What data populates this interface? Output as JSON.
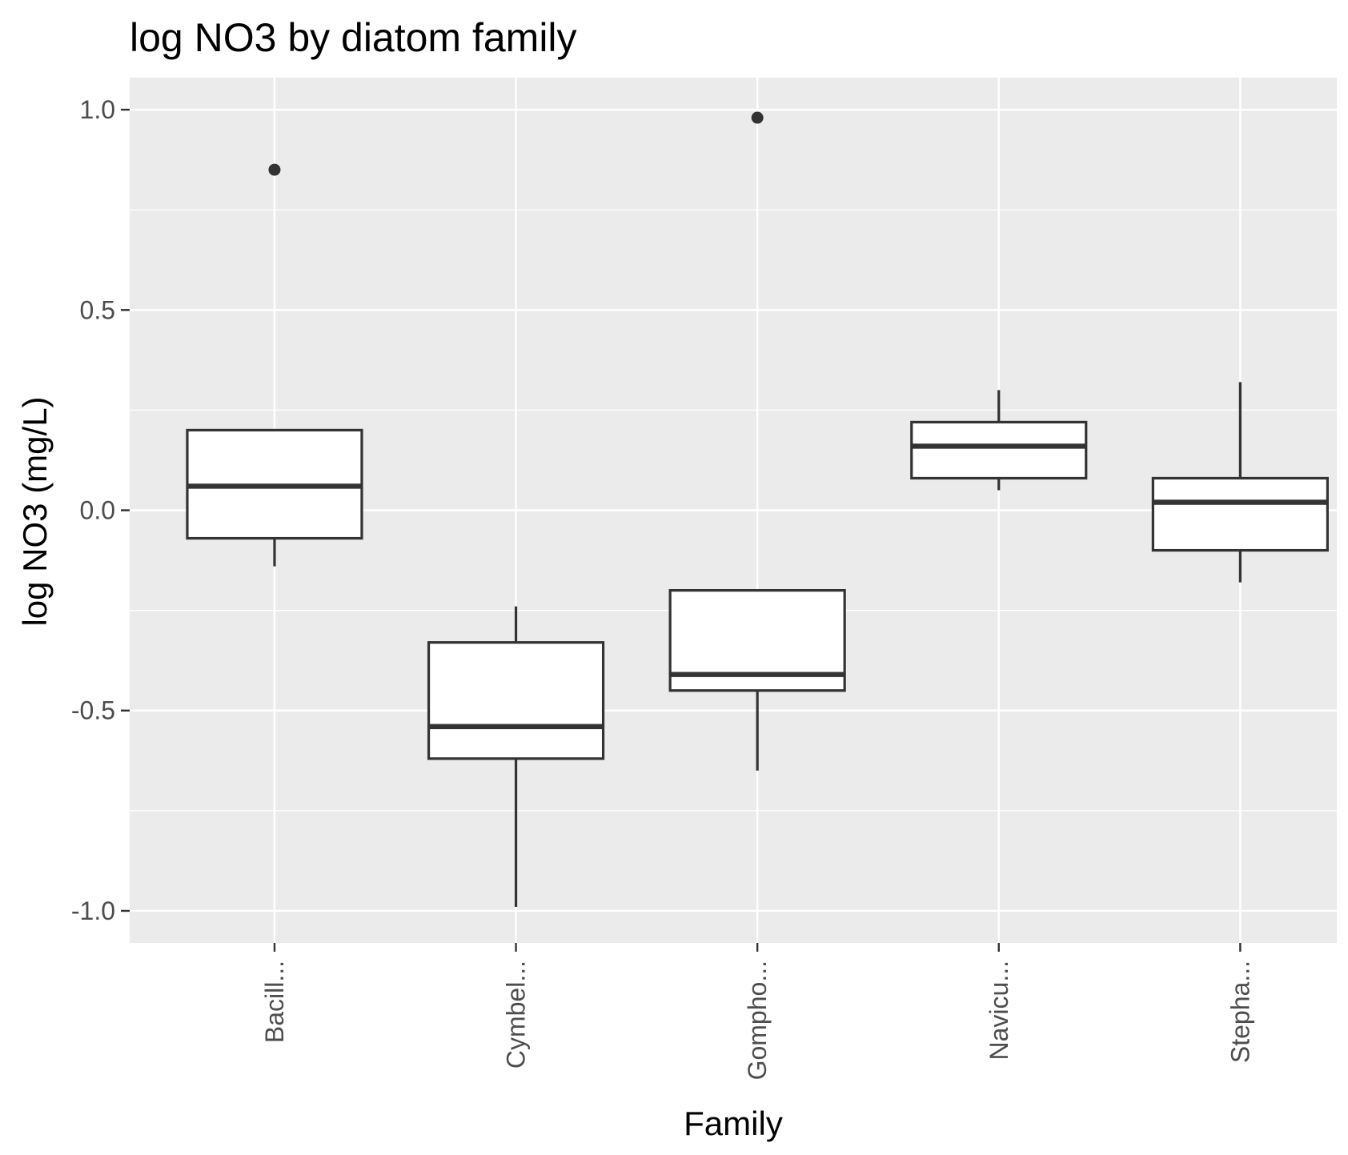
{
  "chart_data": {
    "type": "box",
    "title": "log NO3 by diatom family",
    "xlabel": "Family",
    "ylabel": "log NO3 (mg/L)",
    "ylim": [
      -1.08,
      1.08
    ],
    "yticks": [
      -1.0,
      -0.5,
      0.0,
      0.5,
      1.0
    ],
    "ytick_labels": [
      "-1.0",
      "-0.5",
      "0.0",
      "0.5",
      "1.0"
    ],
    "categories": [
      "Bacill...",
      "Cymbel...",
      "Gompho...",
      "Navicu...",
      "Stepha..."
    ],
    "boxes": [
      {
        "category": "Bacill...",
        "whisker_low": -0.14,
        "q1": -0.07,
        "median": 0.06,
        "q3": 0.2,
        "whisker_high": 0.2,
        "outliers": [
          0.85
        ]
      },
      {
        "category": "Cymbel...",
        "whisker_low": -0.99,
        "q1": -0.62,
        "median": -0.54,
        "q3": -0.33,
        "whisker_high": -0.24,
        "outliers": []
      },
      {
        "category": "Gompho...",
        "whisker_low": -0.65,
        "q1": -0.45,
        "median": -0.41,
        "q3": -0.2,
        "whisker_high": -0.2,
        "outliers": [
          0.98
        ]
      },
      {
        "category": "Navicu...",
        "whisker_low": 0.05,
        "q1": 0.08,
        "median": 0.16,
        "q3": 0.22,
        "whisker_high": 0.3,
        "outliers": []
      },
      {
        "category": "Stepha...",
        "whisker_low": -0.18,
        "q1": -0.1,
        "median": 0.02,
        "q3": 0.08,
        "whisker_high": 0.32,
        "outliers": []
      }
    ],
    "grid": true,
    "colors": {
      "panel": "#ebebeb",
      "grid": "#ffffff",
      "box_fill": "#ffffff",
      "box_line": "#333333",
      "tick_text": "#4d4d4d"
    }
  }
}
